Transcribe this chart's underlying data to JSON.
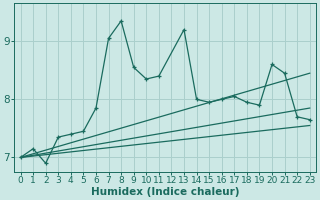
{
  "xlabel": "Humidex (Indice chaleur)",
  "background_color": "#cce8e5",
  "line_color": "#1a6b5e",
  "grid_color": "#aacfcc",
  "xlim": [
    -0.5,
    23.5
  ],
  "ylim": [
    6.75,
    9.65
  ],
  "yticks": [
    7,
    8,
    9
  ],
  "xticks": [
    0,
    1,
    2,
    3,
    4,
    5,
    6,
    7,
    8,
    9,
    10,
    11,
    12,
    13,
    14,
    15,
    16,
    17,
    18,
    19,
    20,
    21,
    22,
    23
  ],
  "series1_x": [
    0,
    1,
    2,
    3,
    4,
    5,
    6,
    7,
    8,
    9,
    10,
    11,
    13,
    14,
    15,
    16,
    17,
    18,
    19,
    20,
    21,
    22,
    23
  ],
  "series1_y": [
    7.0,
    7.15,
    6.9,
    7.35,
    7.4,
    7.45,
    7.85,
    9.05,
    9.35,
    8.55,
    8.35,
    8.4,
    9.2,
    8.0,
    7.95,
    8.0,
    8.05,
    7.95,
    7.9,
    8.6,
    8.45,
    7.7,
    7.65
  ],
  "series2_x": [
    0,
    23
  ],
  "series2_y": [
    7.0,
    7.55
  ],
  "series3_x": [
    0,
    23
  ],
  "series3_y": [
    7.0,
    7.85
  ],
  "series4_x": [
    0,
    23
  ],
  "series4_y": [
    7.0,
    8.45
  ],
  "font_color": "#1a6b5e",
  "tick_fontsize": 6.5,
  "label_fontsize": 7.5
}
